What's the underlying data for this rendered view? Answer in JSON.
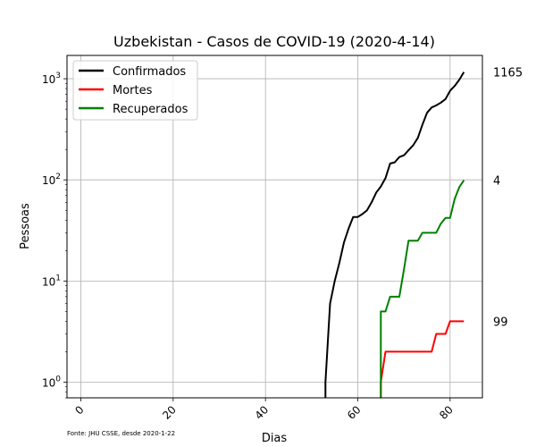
{
  "chart_data": {
    "type": "line",
    "title": "Uzbekistan - Casos de COVID-19 (2020-4-14)",
    "xlabel": "Dias",
    "ylabel": "Pessoas",
    "yscale": "log",
    "xlim": [
      -3,
      87
    ],
    "ylim": [
      0.7,
      1700
    ],
    "xticks": [
      0,
      20,
      40,
      60,
      80
    ],
    "yticks": [
      {
        "value": 1,
        "base": "10",
        "exp": "0"
      },
      {
        "value": 10,
        "base": "10",
        "exp": "1"
      },
      {
        "value": 100,
        "base": "10",
        "exp": "2"
      },
      {
        "value": 1000,
        "base": "10",
        "exp": "3"
      }
    ],
    "grid": true,
    "legend_position": "top-left",
    "source_note": "Fonte: JHU CSSE, desde 2020-1-22",
    "end_labels": [
      "1165",
      "99",
      "4"
    ],
    "series": [
      {
        "name": "Confirmados",
        "color": "#000000",
        "points": [
          [
            53,
            0.7
          ],
          [
            53,
            1
          ],
          [
            54,
            6
          ],
          [
            55,
            10
          ],
          [
            56,
            15
          ],
          [
            57,
            24
          ],
          [
            58,
            33
          ],
          [
            59,
            43
          ],
          [
            60,
            43
          ],
          [
            61,
            46
          ],
          [
            62,
            50
          ],
          [
            63,
            60
          ],
          [
            64,
            75
          ],
          [
            65,
            86
          ],
          [
            66,
            104
          ],
          [
            67,
            145
          ],
          [
            68,
            149
          ],
          [
            69,
            168
          ],
          [
            70,
            175
          ],
          [
            71,
            196
          ],
          [
            72,
            220
          ],
          [
            73,
            260
          ],
          [
            74,
            350
          ],
          [
            75,
            460
          ],
          [
            76,
            520
          ],
          [
            77,
            545
          ],
          [
            78,
            580
          ],
          [
            79,
            630
          ],
          [
            80,
            760
          ],
          [
            81,
            850
          ],
          [
            82,
            980
          ],
          [
            83,
            1165
          ]
        ]
      },
      {
        "name": "Mortes",
        "color": "#ff0000",
        "points": [
          [
            65,
            0.7
          ],
          [
            65,
            1
          ],
          [
            66,
            2
          ],
          [
            67,
            2
          ],
          [
            68,
            2
          ],
          [
            69,
            2
          ],
          [
            70,
            2
          ],
          [
            71,
            2
          ],
          [
            72,
            2
          ],
          [
            73,
            2
          ],
          [
            74,
            2
          ],
          [
            75,
            2
          ],
          [
            76,
            2
          ],
          [
            77,
            3
          ],
          [
            78,
            3
          ],
          [
            79,
            3
          ],
          [
            80,
            4
          ],
          [
            81,
            4
          ],
          [
            82,
            4
          ],
          [
            83,
            4
          ]
        ]
      },
      {
        "name": "Recuperados",
        "color": "#008000",
        "points": [
          [
            65,
            0.7
          ],
          [
            65,
            5
          ],
          [
            66,
            5
          ],
          [
            67,
            7
          ],
          [
            68,
            7
          ],
          [
            69,
            7
          ],
          [
            70,
            13
          ],
          [
            71,
            25
          ],
          [
            72,
            25
          ],
          [
            73,
            25
          ],
          [
            74,
            30
          ],
          [
            75,
            30
          ],
          [
            76,
            30
          ],
          [
            77,
            30
          ],
          [
            78,
            37
          ],
          [
            79,
            42
          ],
          [
            80,
            42
          ],
          [
            81,
            65
          ],
          [
            82,
            85
          ],
          [
            83,
            99
          ]
        ]
      }
    ]
  }
}
